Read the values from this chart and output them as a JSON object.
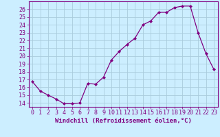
{
  "x": [
    0,
    1,
    2,
    3,
    4,
    5,
    6,
    7,
    8,
    9,
    10,
    11,
    12,
    13,
    14,
    15,
    16,
    17,
    18,
    19,
    20,
    21,
    22,
    23
  ],
  "y": [
    16.7,
    15.5,
    15.0,
    14.5,
    13.9,
    13.9,
    14.0,
    16.5,
    16.4,
    17.3,
    19.5,
    20.6,
    21.5,
    22.3,
    24.0,
    24.5,
    25.6,
    25.6,
    26.2,
    26.4,
    26.4,
    23.0,
    20.3,
    18.3
  ],
  "line_color": "#800080",
  "marker": "D",
  "marker_size": 2.0,
  "bg_color": "#cceeff",
  "grid_color": "#aaccdd",
  "xlabel": "Windchill (Refroidissement éolien,°C)",
  "xlim": [
    -0.5,
    23.5
  ],
  "ylim": [
    13.5,
    27.0
  ],
  "yticks": [
    14,
    15,
    16,
    17,
    18,
    19,
    20,
    21,
    22,
    23,
    24,
    25,
    26
  ],
  "xticks": [
    0,
    1,
    2,
    3,
    4,
    5,
    6,
    7,
    8,
    9,
    10,
    11,
    12,
    13,
    14,
    15,
    16,
    17,
    18,
    19,
    20,
    21,
    22,
    23
  ],
  "tick_color": "#800080",
  "label_color": "#800080",
  "axis_color": "#800080",
  "font_size": 6.0,
  "xlabel_fontsize": 6.5,
  "linewidth": 0.9
}
